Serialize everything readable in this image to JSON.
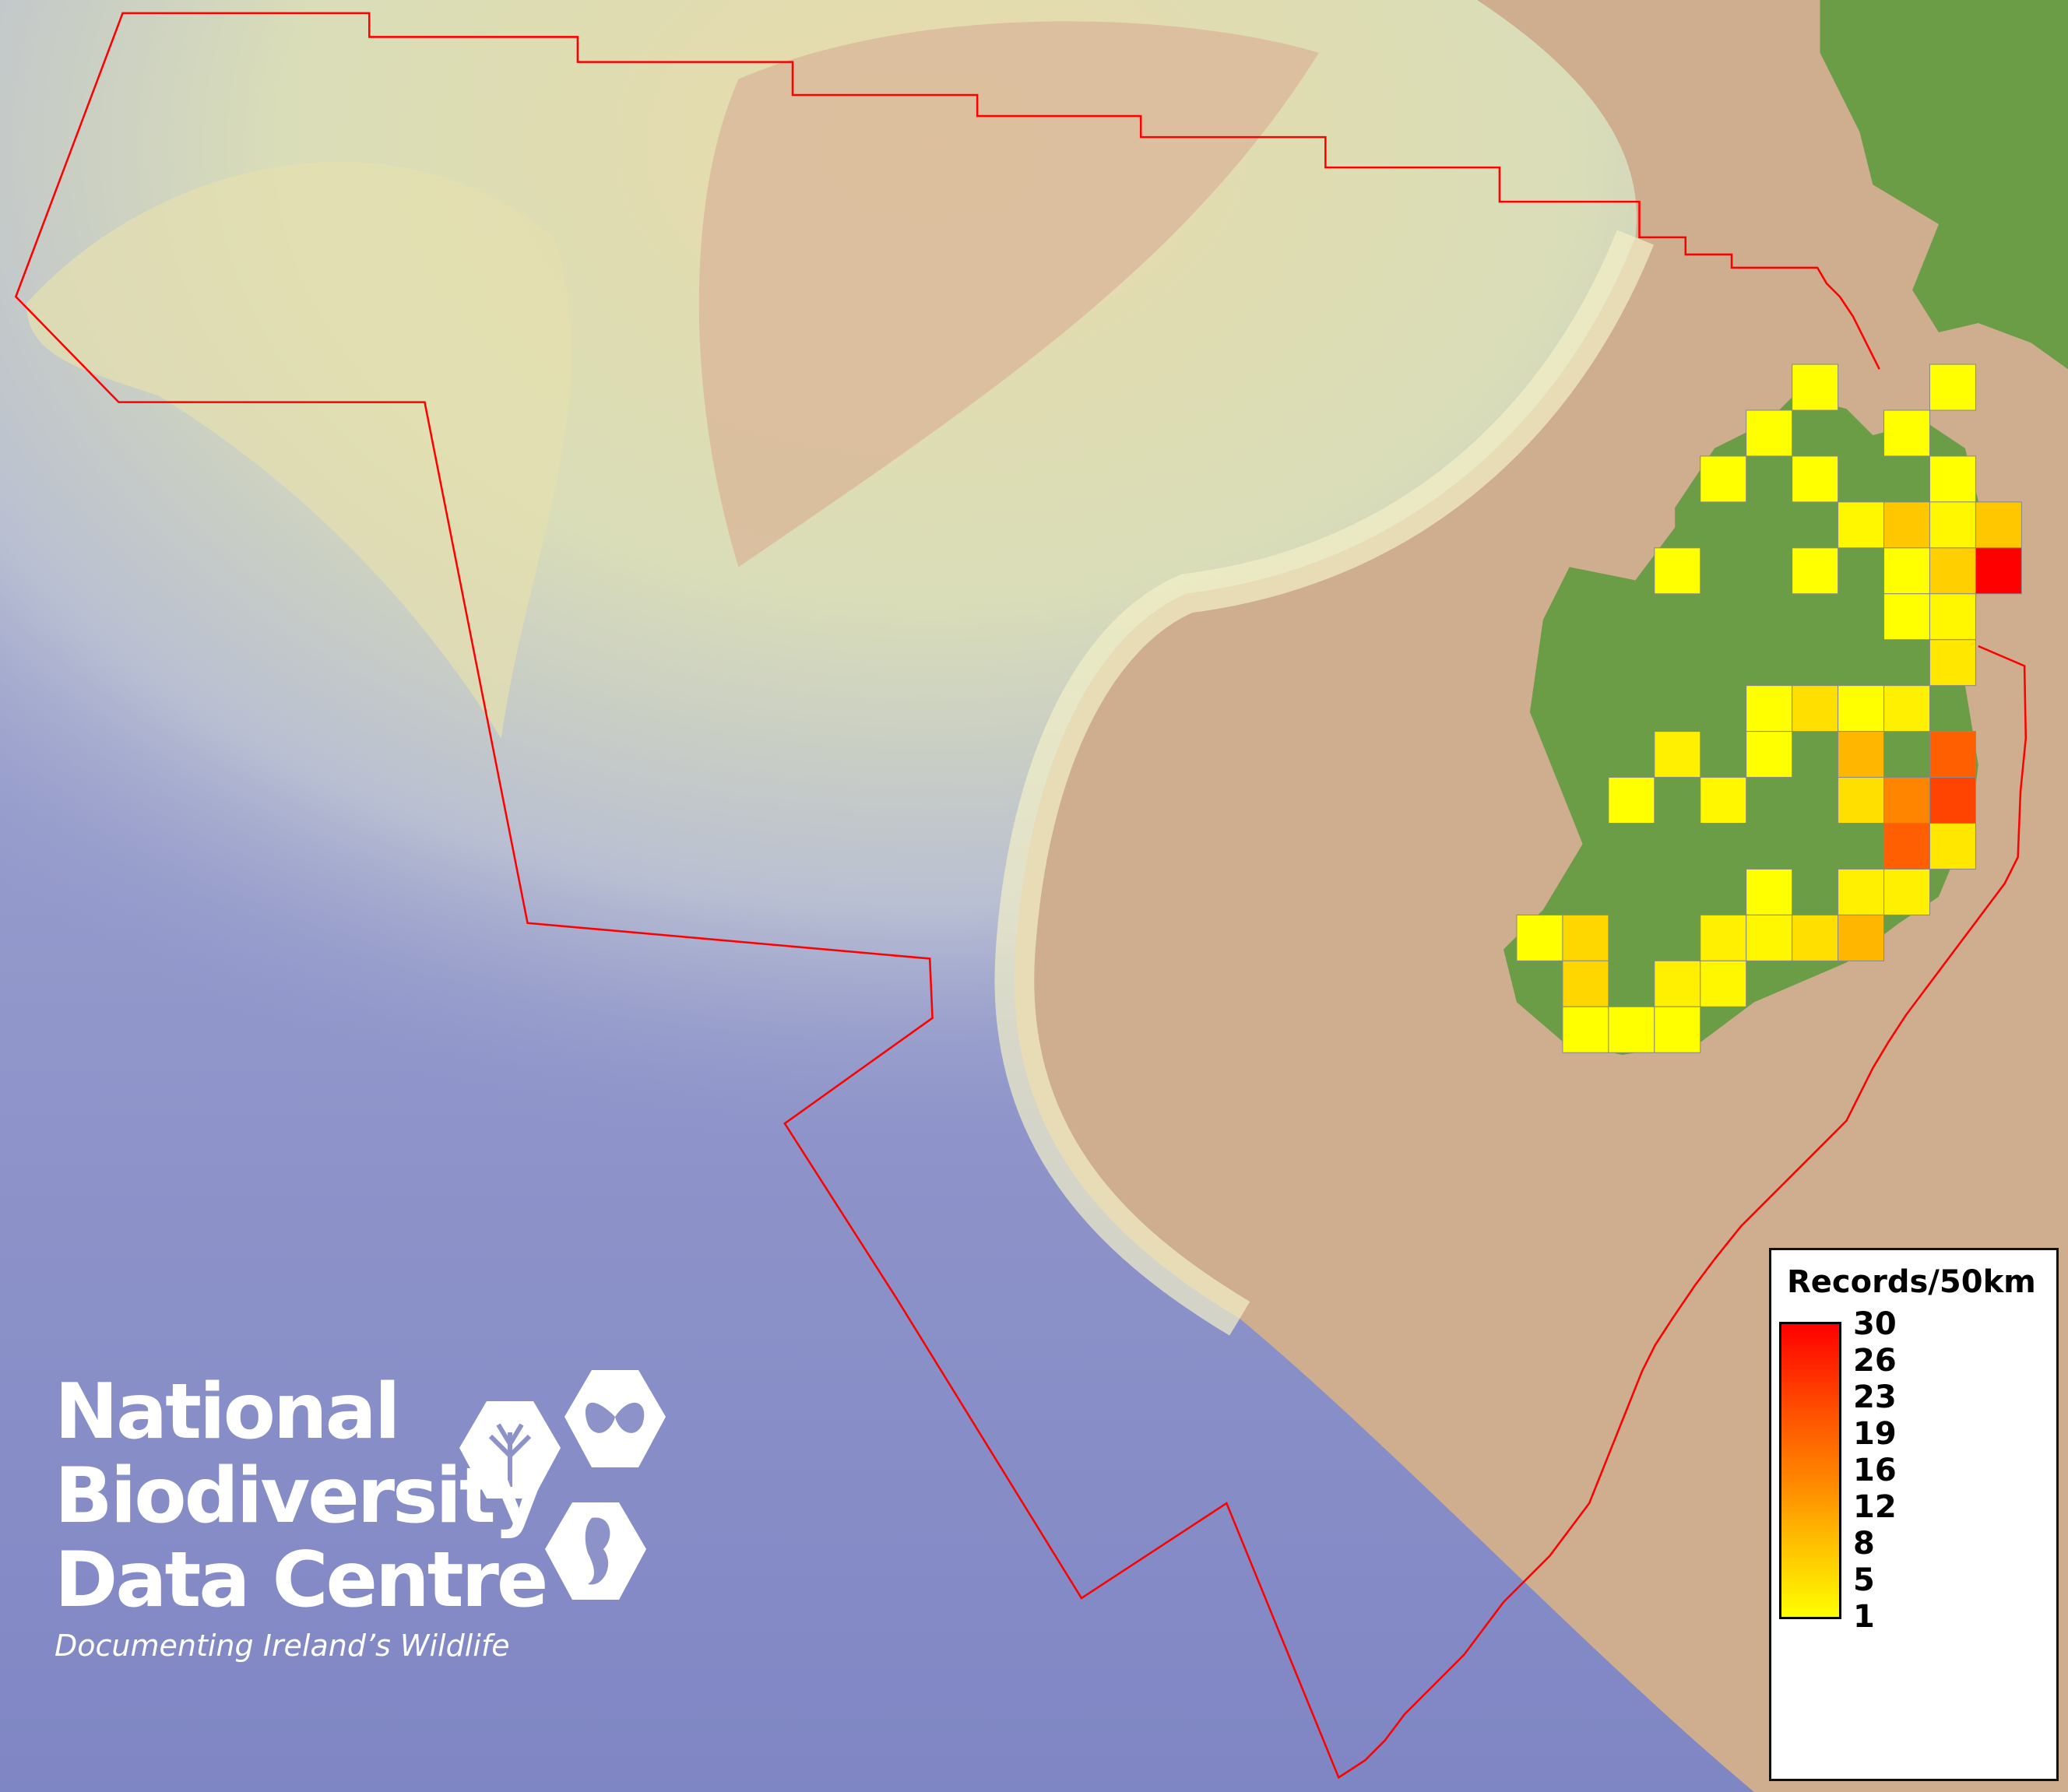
{
  "logo": {
    "lines": [
      "National",
      "Biodiversity",
      "Data Centre"
    ],
    "tagline": "Documenting Ireland’s Wildlife",
    "icons": [
      "tree-icon",
      "butterfly-icon",
      "seahorse-icon"
    ]
  },
  "legend": {
    "title": "Records/50km",
    "ticks": [
      "30",
      "26",
      "23",
      "19",
      "16",
      "12",
      "8",
      "5",
      "1"
    ],
    "range": [
      1,
      30
    ],
    "colors": {
      "low": "#ffff00",
      "mid": "#ff8a00",
      "high": "#ff0000"
    }
  },
  "colors": {
    "boundary": "#ff0000",
    "land": "#6a9d45",
    "grid_border": "#888888"
  },
  "grid_cells": [
    {
      "col": 6,
      "row": 0,
      "value": 1
    },
    {
      "col": 9,
      "row": 0,
      "value": 1
    },
    {
      "col": 5,
      "row": 1,
      "value": 1
    },
    {
      "col": 8,
      "row": 1,
      "value": 1
    },
    {
      "col": 4,
      "row": 2,
      "value": 1
    },
    {
      "col": 6,
      "row": 2,
      "value": 1
    },
    {
      "col": 9,
      "row": 2,
      "value": 1
    },
    {
      "col": 7,
      "row": 3,
      "value": 2
    },
    {
      "col": 8,
      "row": 3,
      "value": 8
    },
    {
      "col": 9,
      "row": 3,
      "value": 2
    },
    {
      "col": 10,
      "row": 3,
      "value": 8
    },
    {
      "col": 3,
      "row": 4,
      "value": 1
    },
    {
      "col": 6,
      "row": 4,
      "value": 1
    },
    {
      "col": 8,
      "row": 4,
      "value": 1
    },
    {
      "col": 9,
      "row": 4,
      "value": 7
    },
    {
      "col": 10,
      "row": 4,
      "value": 30
    },
    {
      "col": 8,
      "row": 5,
      "value": 1
    },
    {
      "col": 9,
      "row": 5,
      "value": 2
    },
    {
      "col": 9,
      "row": 6,
      "value": 4
    },
    {
      "col": 5,
      "row": 7,
      "value": 1
    },
    {
      "col": 6,
      "row": 7,
      "value": 5
    },
    {
      "col": 7,
      "row": 7,
      "value": 1
    },
    {
      "col": 8,
      "row": 7,
      "value": 3
    },
    {
      "col": 3,
      "row": 8,
      "value": 3
    },
    {
      "col": 5,
      "row": 8,
      "value": 1
    },
    {
      "col": 7,
      "row": 8,
      "value": 10
    },
    {
      "col": 9,
      "row": 8,
      "value": 20
    },
    {
      "col": 2,
      "row": 9,
      "value": 1
    },
    {
      "col": 4,
      "row": 9,
      "value": 2
    },
    {
      "col": 7,
      "row": 9,
      "value": 5
    },
    {
      "col": 8,
      "row": 9,
      "value": 16
    },
    {
      "col": 9,
      "row": 9,
      "value": 23
    },
    {
      "col": 8,
      "row": 10,
      "value": 20
    },
    {
      "col": 9,
      "row": 10,
      "value": 4
    },
    {
      "col": 5,
      "row": 11,
      "value": 1
    },
    {
      "col": 7,
      "row": 11,
      "value": 3
    },
    {
      "col": 8,
      "row": 11,
      "value": 3
    },
    {
      "col": 0,
      "row": 12,
      "value": 1
    },
    {
      "col": 1,
      "row": 12,
      "value": 6
    },
    {
      "col": 4,
      "row": 12,
      "value": 3
    },
    {
      "col": 5,
      "row": 12,
      "value": 2
    },
    {
      "col": 6,
      "row": 12,
      "value": 5
    },
    {
      "col": 7,
      "row": 12,
      "value": 10
    },
    {
      "col": 1,
      "row": 13,
      "value": 6
    },
    {
      "col": 3,
      "row": 13,
      "value": 3
    },
    {
      "col": 4,
      "row": 13,
      "value": 2
    },
    {
      "col": 1,
      "row": 14,
      "value": 1
    },
    {
      "col": 2,
      "row": 14,
      "value": 1
    },
    {
      "col": 3,
      "row": 14,
      "value": 1
    }
  ]
}
